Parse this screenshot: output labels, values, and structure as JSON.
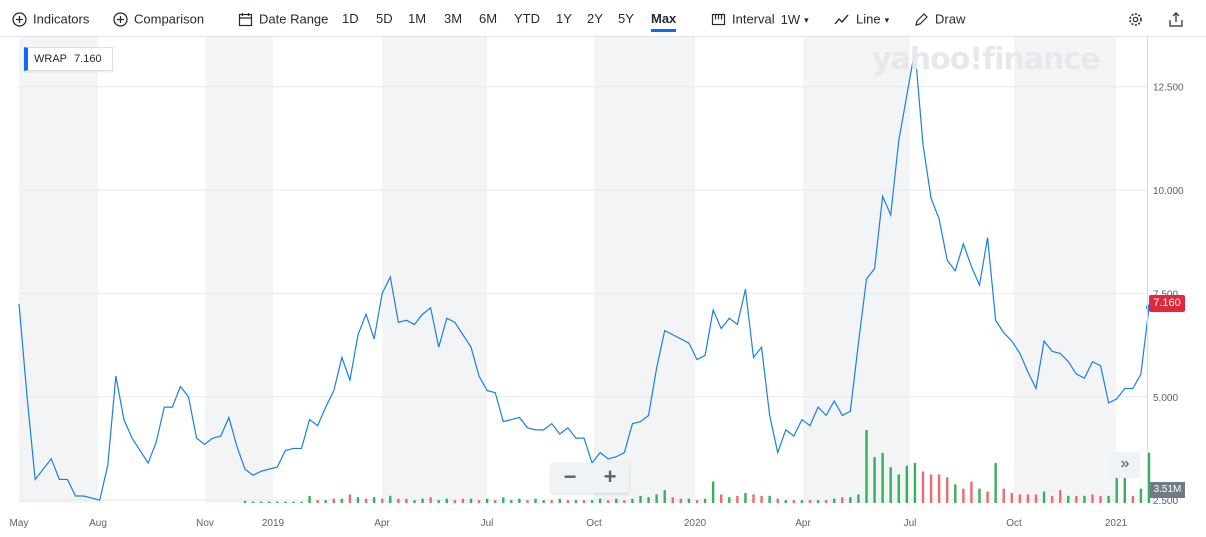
{
  "toolbar": {
    "indicators": {
      "label": "Indicators",
      "icon": "plus-circle-icon"
    },
    "comparison": {
      "label": "Comparison",
      "icon": "plus-circle-icon"
    },
    "date_range": {
      "label": "Date Range",
      "icon": "calendar-icon"
    },
    "ranges": [
      "1D",
      "5D",
      "1M",
      "3M",
      "6M",
      "YTD",
      "1Y",
      "2Y",
      "5Y",
      "Max"
    ],
    "active_range": "Max",
    "interval": {
      "label": "Interval",
      "value": "1W",
      "icon": "candlestick-icon"
    },
    "chart_type": {
      "label": "Line",
      "icon": "line-chart-icon"
    },
    "draw": {
      "label": "Draw",
      "icon": "pencil-icon"
    },
    "settings_icon": "gear-icon",
    "share_icon": "share-icon"
  },
  "watermark": "yahoo!finance",
  "legend": {
    "symbol": "WRAP",
    "value": "7.160"
  },
  "price_tag": "7.160",
  "volume_tag": "3.51M",
  "zoom": {
    "minus": "−",
    "plus": "+"
  },
  "expand_label": "»",
  "colors": {
    "line": "#1a80e6",
    "accent": "#0f69ff",
    "price_tag": "#e0293a",
    "vol_up": "#35b05e",
    "vol_down": "#ee6a72",
    "band": "#f3f4f5"
  },
  "chart_data": {
    "type": "line",
    "title": "",
    "xlabel": "",
    "ylabel": "",
    "x_ticks": [
      "May",
      "Aug",
      "Nov",
      "2019",
      "Apr",
      "Jul",
      "Oct",
      "2020",
      "Apr",
      "Jul",
      "Oct",
      "2021"
    ],
    "y_ticks": [
      "2.500",
      "5.000",
      "7.500",
      "10.000",
      "12.500"
    ],
    "ylim": [
      2.6,
      13.6
    ],
    "grid": true,
    "series": [
      {
        "values": [
          7.25,
          5.0,
          3.0,
          3.25,
          3.5,
          3.0,
          3.0,
          2.6,
          2.6,
          2.55,
          2.5,
          3.35,
          5.5,
          4.45,
          4.0,
          3.7,
          3.4,
          3.9,
          4.75,
          4.75,
          5.25,
          5.0,
          4.0,
          3.85,
          4.0,
          4.05,
          4.5,
          3.8,
          3.25,
          3.1,
          3.2,
          3.25,
          3.3,
          3.7,
          3.75,
          3.75,
          4.45,
          4.3,
          4.75,
          5.15,
          5.95,
          5.4,
          6.5,
          7.0,
          6.4,
          7.5,
          7.9,
          6.8,
          6.85,
          6.75,
          7.0,
          7.15,
          6.2,
          6.9,
          6.8,
          6.5,
          6.2,
          5.5,
          5.15,
          5.1,
          4.4,
          4.45,
          4.5,
          4.25,
          4.2,
          4.2,
          4.35,
          4.1,
          4.25,
          4.0,
          4.0,
          3.4,
          3.65,
          3.5,
          3.55,
          3.65,
          4.35,
          4.4,
          4.55,
          5.7,
          6.6,
          6.5,
          6.4,
          6.3,
          5.9,
          6.0,
          7.1,
          6.65,
          6.9,
          6.75,
          7.6,
          5.95,
          6.2,
          4.55,
          3.65,
          4.2,
          4.05,
          4.45,
          4.3,
          4.75,
          4.55,
          4.9,
          4.55,
          4.65,
          6.3,
          7.85,
          8.1,
          9.85,
          9.4,
          11.2,
          12.3,
          13.4,
          11.1,
          9.8,
          9.3,
          8.3,
          8.05,
          8.7,
          8.15,
          7.7,
          8.85,
          6.85,
          6.55,
          6.35,
          6.05,
          5.6,
          5.2,
          6.35,
          6.1,
          6.05,
          5.85,
          5.55,
          5.45,
          5.85,
          5.75,
          4.85,
          4.95,
          5.2,
          5.2,
          5.55,
          7.16
        ]
      }
    ],
    "volume": {
      "up": [
        false,
        false,
        false,
        false,
        false,
        false,
        false,
        false,
        false,
        false,
        false,
        false,
        false,
        false,
        false,
        false,
        false,
        false,
        false,
        false,
        false,
        false,
        false,
        false,
        false,
        false,
        false,
        false,
        true,
        true,
        true,
        true,
        true,
        true,
        true,
        true,
        true,
        false,
        true,
        false,
        true,
        false,
        true,
        false,
        true,
        false,
        true,
        false,
        false,
        true,
        true,
        false,
        true,
        true,
        false,
        false,
        true,
        false,
        true,
        false,
        true,
        true,
        true,
        false,
        true,
        true,
        false,
        true,
        false,
        true,
        false,
        true,
        true,
        false,
        true,
        false,
        true,
        true,
        true,
        true,
        true,
        false,
        false,
        true,
        false,
        true,
        true,
        false,
        true,
        false,
        true,
        false,
        false,
        true,
        false,
        true,
        false,
        true,
        false,
        true,
        false,
        true,
        false,
        true,
        true,
        true,
        true,
        true,
        true,
        true,
        true,
        true,
        false,
        false,
        false,
        false,
        true,
        false,
        false,
        true,
        false,
        true,
        false,
        false,
        false,
        false,
        false,
        true,
        false,
        false,
        true,
        false,
        true,
        false,
        false,
        true,
        true,
        true,
        false,
        true,
        true
      ],
      "values": [
        0.0,
        0.0,
        0.0,
        0.0,
        0.0,
        0.0,
        0.0,
        0.0,
        0.0,
        0.0,
        0.0,
        0.0,
        0.0,
        0.0,
        0.0,
        0.0,
        0.0,
        0.0,
        0.0,
        0.0,
        0.0,
        0.0,
        0.0,
        0.0,
        0.0,
        0.0,
        0.0,
        0.0,
        0.15,
        0.1,
        0.1,
        0.1,
        0.1,
        0.1,
        0.1,
        0.1,
        0.5,
        0.2,
        0.2,
        0.3,
        0.3,
        0.6,
        0.4,
        0.3,
        0.4,
        0.3,
        0.5,
        0.3,
        0.3,
        0.2,
        0.3,
        0.4,
        0.2,
        0.3,
        0.2,
        0.3,
        0.3,
        0.2,
        0.3,
        0.2,
        0.4,
        0.2,
        0.3,
        0.2,
        0.3,
        0.2,
        0.2,
        0.3,
        0.2,
        0.2,
        0.2,
        0.2,
        0.3,
        0.2,
        0.3,
        0.2,
        0.3,
        0.5,
        0.4,
        0.6,
        0.9,
        0.4,
        0.3,
        0.3,
        0.2,
        0.3,
        1.5,
        0.6,
        0.4,
        0.5,
        0.7,
        0.6,
        0.5,
        0.5,
        0.3,
        0.2,
        0.2,
        0.2,
        0.2,
        0.2,
        0.2,
        0.3,
        0.4,
        0.4,
        0.6,
        5.1,
        3.2,
        3.5,
        2.5,
        2.0,
        2.6,
        2.8,
        2.2,
        2.0,
        2.0,
        1.8,
        1.3,
        1.0,
        1.5,
        1.0,
        0.8,
        2.8,
        1.0,
        0.7,
        0.6,
        0.6,
        0.6,
        0.8,
        0.5,
        0.9,
        0.5,
        0.5,
        0.5,
        0.6,
        0.5,
        0.5,
        2.3,
        2.3,
        0.5,
        1.0,
        3.51
      ]
    }
  }
}
